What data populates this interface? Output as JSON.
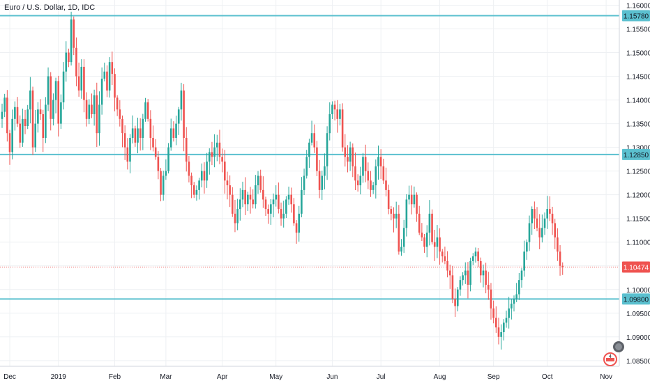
{
  "header": {
    "title": "Euro / U.S. Dollar, 1D, IDC"
  },
  "colors": {
    "up": "#26a69a",
    "down": "#ef5350",
    "level_line": "#5bc0cf",
    "level_badge": "#5bc0cf",
    "last_price_badge": "#ef5350",
    "grid": "#eef0f3",
    "axis_text": "#131722"
  },
  "icons": {
    "events": "flag-event-icon",
    "economic": "economic-event-icon"
  },
  "chart_data": {
    "type": "candlestick",
    "y_axis_ticks": [
      "1.16000",
      "1.15500",
      "1.15000",
      "1.14500",
      "1.14000",
      "1.13500",
      "1.13000",
      "1.12500",
      "1.12000",
      "1.11500",
      "1.11000",
      "1.10500",
      "1.10000",
      "1.09500",
      "1.09000",
      "1.08500"
    ],
    "ylim": [
      1.0838,
      1.1611
    ],
    "x_axis_ticks": [
      {
        "label": "Dec",
        "bar": 3
      },
      {
        "label": "2019",
        "bar": 22
      },
      {
        "label": "Feb",
        "bar": 44
      },
      {
        "label": "Mar",
        "bar": 64
      },
      {
        "label": "Apr",
        "bar": 86
      },
      {
        "label": "May",
        "bar": 107
      },
      {
        "label": "Jun",
        "bar": 129
      },
      {
        "label": "Jul",
        "bar": 148
      },
      {
        "label": "Aug",
        "bar": 171
      },
      {
        "label": "Sep",
        "bar": 192
      },
      {
        "label": "Oct",
        "bar": 213
      },
      {
        "label": "Nov",
        "bar": 236
      }
    ],
    "horizontal_levels": [
      {
        "value": 1.1578,
        "label": "1.15780"
      },
      {
        "value": 1.1285,
        "label": "1.12850"
      },
      {
        "value": 1.098,
        "label": "1.09800"
      }
    ],
    "last_price": {
      "value": 1.10474,
      "label": "1.10474"
    },
    "closes": [
      1.1375,
      1.1405,
      1.133,
      1.129,
      1.136,
      1.1385,
      1.135,
      1.131,
      1.136,
      1.1345,
      1.138,
      1.142,
      1.13,
      1.135,
      1.138,
      1.137,
      1.132,
      1.139,
      1.145,
      1.136,
      1.14,
      1.144,
      1.135,
      1.1395,
      1.146,
      1.15,
      1.148,
      1.157,
      1.151,
      1.145,
      1.142,
      1.147,
      1.14,
      1.136,
      1.139,
      1.137,
      1.141,
      1.133,
      1.139,
      1.1445,
      1.146,
      1.142,
      1.148,
      1.1455,
      1.1405,
      1.138,
      1.136,
      1.133,
      1.13,
      1.127,
      1.132,
      1.134,
      1.131,
      1.134,
      1.132,
      1.136,
      1.1395,
      1.136,
      1.132,
      1.13,
      1.128,
      1.125,
      1.12,
      1.124,
      1.125,
      1.13,
      1.134,
      1.132,
      1.135,
      1.138,
      1.142,
      1.132,
      1.127,
      1.124,
      1.122,
      1.12,
      1.121,
      1.123,
      1.125,
      1.123,
      1.127,
      1.129,
      1.128,
      1.13,
      1.131,
      1.128,
      1.127,
      1.123,
      1.122,
      1.12,
      1.116,
      1.114,
      1.117,
      1.119,
      1.121,
      1.118,
      1.12,
      1.119,
      1.118,
      1.122,
      1.124,
      1.121,
      1.119,
      1.117,
      1.116,
      1.118,
      1.119,
      1.12,
      1.117,
      1.115,
      1.116,
      1.119,
      1.12,
      1.118,
      1.114,
      1.112,
      1.116,
      1.121,
      1.124,
      1.128,
      1.131,
      1.133,
      1.13,
      1.125,
      1.121,
      1.124,
      1.126,
      1.133,
      1.137,
      1.139,
      1.138,
      1.136,
      1.138,
      1.13,
      1.128,
      1.127,
      1.13,
      1.126,
      1.123,
      1.122,
      1.124,
      1.128,
      1.125,
      1.123,
      1.121,
      1.122,
      1.126,
      1.128,
      1.126,
      1.123,
      1.121,
      1.117,
      1.116,
      1.115,
      1.116,
      1.108,
      1.109,
      1.113,
      1.119,
      1.12,
      1.118,
      1.12,
      1.116,
      1.112,
      1.111,
      1.109,
      1.112,
      1.116,
      1.11,
      1.109,
      1.111,
      1.108,
      1.107,
      1.106,
      1.104,
      1.103,
      1.098,
      1.0965,
      1.1,
      1.102,
      1.103,
      1.104,
      1.101,
      1.106,
      1.107,
      1.108,
      1.106,
      1.103,
      1.104,
      1.101,
      1.1,
      1.096,
      1.094,
      1.092,
      1.09,
      1.091,
      1.093,
      1.094,
      1.096,
      1.097,
      1.098,
      1.099,
      1.102,
      1.104,
      1.108,
      1.11,
      1.114,
      1.117,
      1.115,
      1.113,
      1.111,
      1.113,
      1.115,
      1.117,
      1.116,
      1.114,
      1.111,
      1.108,
      1.105,
      1.1047
    ]
  }
}
